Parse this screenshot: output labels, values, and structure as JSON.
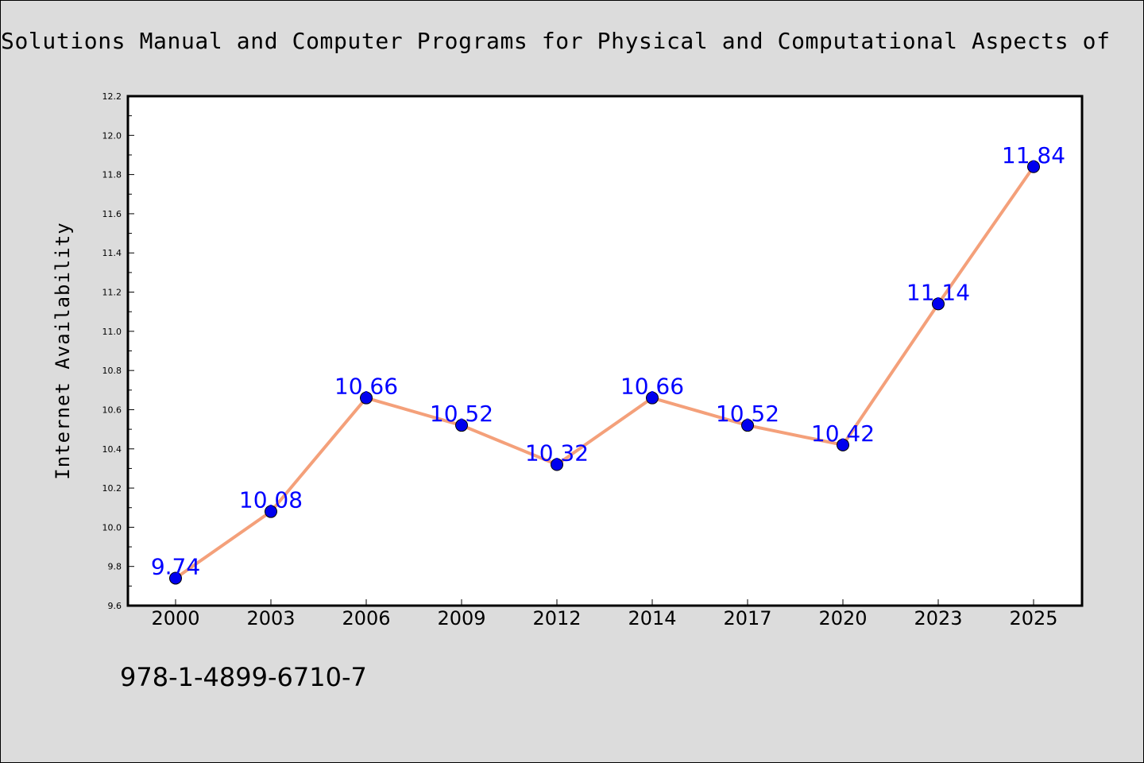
{
  "page": {
    "title": "Solutions Manual and Computer Programs for Physical and Computational Aspects of",
    "isbn": "978-1-4899-6710-7"
  },
  "chart_data": {
    "type": "line",
    "title": "Solutions Manual and Computer Programs for Physical and Computational Aspects of",
    "xlabel": "",
    "ylabel": "Internet Availability",
    "categories": [
      "2000",
      "2003",
      "2006",
      "2009",
      "2012",
      "2014",
      "2017",
      "2020",
      "2023",
      "2025"
    ],
    "series": [
      {
        "values": [
          9.74,
          10.08,
          10.66,
          10.52,
          10.32,
          10.66,
          10.52,
          10.42,
          11.14,
          11.84
        ],
        "data_labels": [
          "9.74",
          "10.08",
          "10.66",
          "10.52",
          "10.32",
          "10.66",
          "10.52",
          "10.42",
          "11.14",
          "11.84"
        ],
        "line_color": "#f4a07a",
        "marker_color": "#0000ee"
      }
    ],
    "ylim": [
      9.6,
      12.2
    ],
    "yticks": [
      "9.6",
      "9.8",
      "10.0",
      "10.2",
      "10.4",
      "10.6",
      "10.8",
      "11.0",
      "11.2",
      "11.4",
      "11.6",
      "11.8",
      "12.0",
      "12.2"
    ],
    "grid": false,
    "legend": "none",
    "label_color": "#0000ff"
  }
}
